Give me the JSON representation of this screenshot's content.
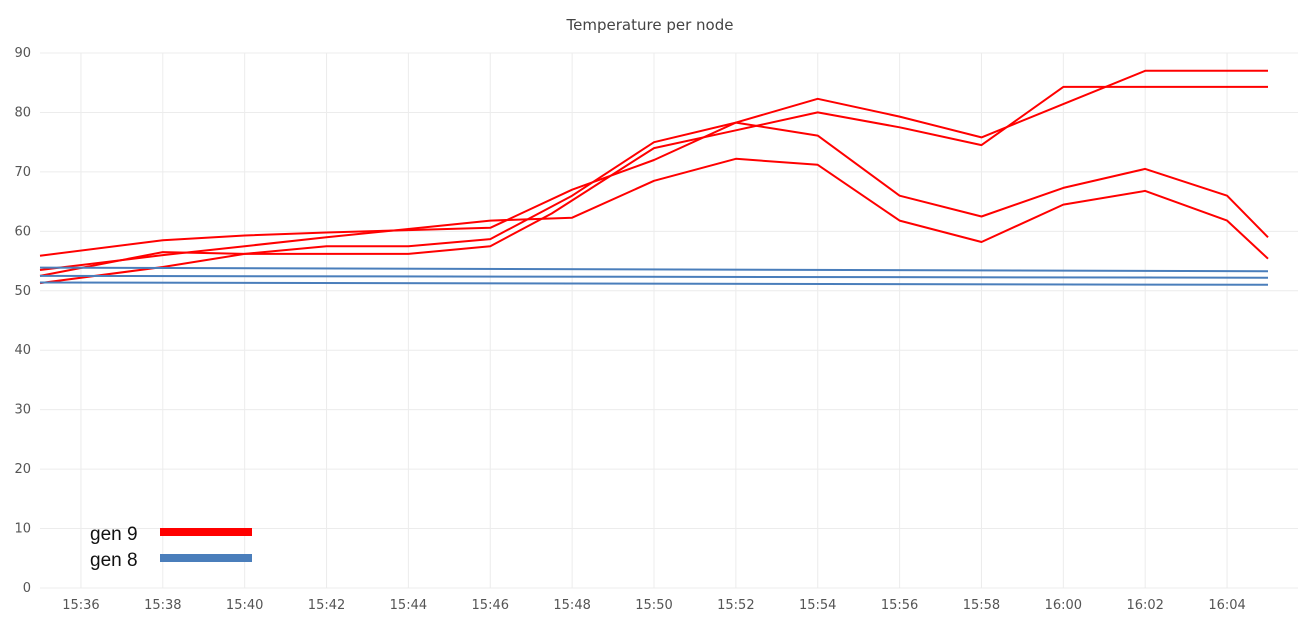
{
  "chart_data": {
    "type": "line",
    "title": "Temperature per node",
    "xlabel": "",
    "ylabel": "",
    "x_ticks": [
      "15:36",
      "15:38",
      "15:40",
      "15:42",
      "15:44",
      "15:46",
      "15:48",
      "15:50",
      "15:52",
      "15:54",
      "15:56",
      "15:58",
      "16:00",
      "16:02",
      "16:04"
    ],
    "y_ticks": [
      0,
      10,
      20,
      30,
      40,
      50,
      60,
      70,
      80,
      90
    ],
    "xlim": [
      "15:35",
      "16:05"
    ],
    "ylim": [
      0,
      90
    ],
    "grid": true,
    "legend": {
      "position": "bottom-left",
      "entries": [
        {
          "label": "gen 9",
          "color": "#ff0000"
        },
        {
          "label": "gen 8",
          "color": "#4a7ebb"
        }
      ]
    },
    "series": [
      {
        "group": "gen 9",
        "color": "#ff0000",
        "x": [
          "15:35",
          "15:38",
          "15:40",
          "15:42",
          "15:44",
          "15:46",
          "15:47:30",
          "15:50",
          "15:52",
          "15:54",
          "15:56",
          "15:58",
          "16:00",
          "16:02",
          "16:04",
          "16:05"
        ],
        "y": [
          52.5,
          56.5,
          56.2,
          56.2,
          56.2,
          57.5,
          63,
          74,
          77,
          80,
          77.5,
          74.5,
          84.3,
          84.3,
          84.3,
          84.3
        ]
      },
      {
        "group": "gen 9",
        "color": "#ff0000",
        "x": [
          "15:35",
          "15:38",
          "15:40",
          "15:42",
          "15:44",
          "15:46",
          "15:48",
          "15:50",
          "15:52",
          "15:54",
          "15:56",
          "15:58",
          "16:00",
          "16:02",
          "16:04",
          "16:05"
        ],
        "y": [
          51.3,
          54,
          56.2,
          57.5,
          57.5,
          58.7,
          66,
          75,
          78.3,
          82.3,
          79.3,
          75.8,
          81.4,
          87,
          87,
          87
        ]
      },
      {
        "group": "gen 9",
        "color": "#ff0000",
        "x": [
          "15:35",
          "15:38",
          "15:40",
          "15:42",
          "15:44",
          "15:46",
          "15:48",
          "15:50",
          "15:52",
          "15:54",
          "15:56",
          "15:58",
          "16:00",
          "16:02",
          "16:04",
          "16:05"
        ],
        "y": [
          55.9,
          58.5,
          59.3,
          59.8,
          60.2,
          60.6,
          67,
          72,
          78.3,
          76.1,
          66,
          62.5,
          67.3,
          70.5,
          66,
          59
        ]
      },
      {
        "group": "gen 9",
        "color": "#ff0000",
        "x": [
          "15:35",
          "15:38",
          "15:40",
          "15:42",
          "15:44",
          "15:46",
          "15:48",
          "15:50",
          "15:52",
          "15:54",
          "15:56",
          "15:58",
          "16:00",
          "16:02",
          "16:04",
          "16:05"
        ],
        "y": [
          53.5,
          56,
          57.5,
          59,
          60.4,
          61.8,
          62.3,
          68.5,
          72.2,
          71.2,
          61.8,
          58.2,
          64.5,
          66.8,
          61.8,
          55.4
        ]
      },
      {
        "group": "gen 8",
        "color": "#4a7ebb",
        "x": [
          "15:35",
          "16:05"
        ],
        "y": [
          53.9,
          53.3
        ]
      },
      {
        "group": "gen 8",
        "color": "#4a7ebb",
        "x": [
          "15:35",
          "16:05"
        ],
        "y": [
          52.5,
          52.2
        ]
      },
      {
        "group": "gen 8",
        "color": "#4a7ebb",
        "x": [
          "15:35",
          "16:05"
        ],
        "y": [
          51.4,
          51.0
        ]
      }
    ]
  }
}
